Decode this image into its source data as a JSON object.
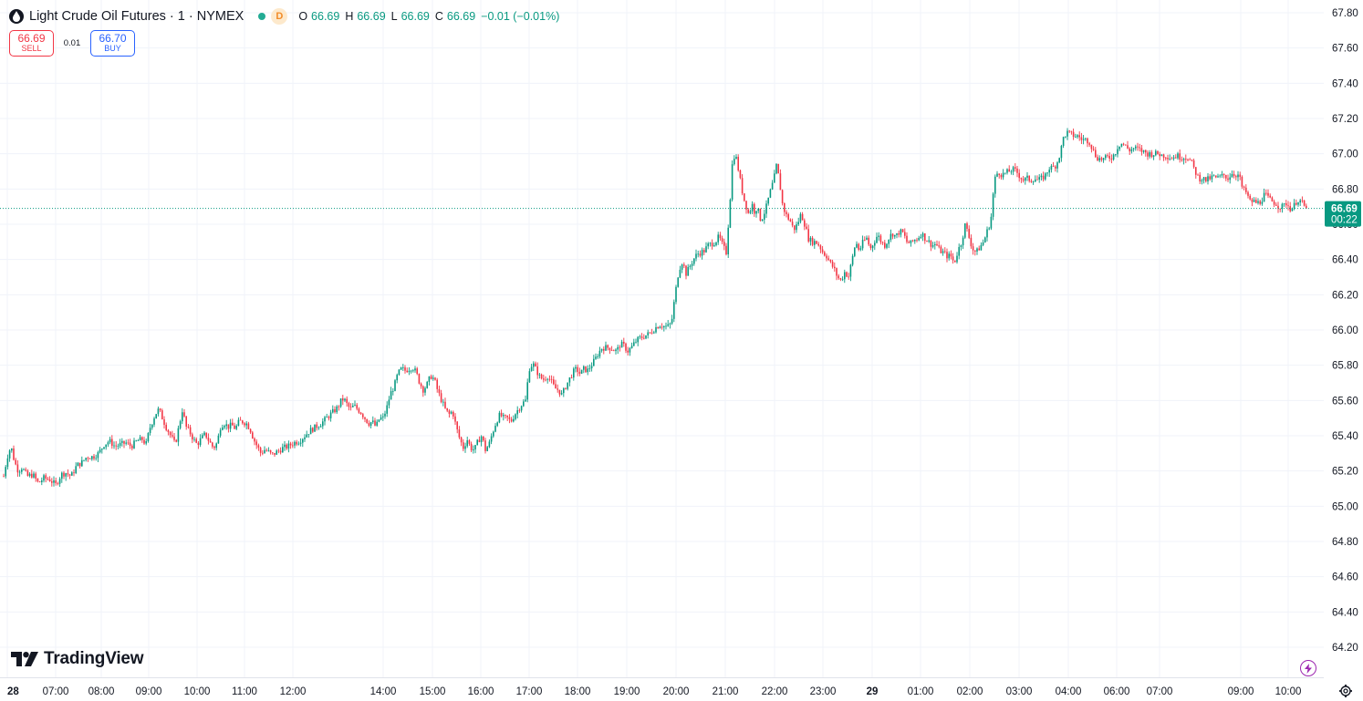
{
  "header": {
    "title": "Light Crude Oil Futures · 1 · NYMEX",
    "interval_badge": "D",
    "ohlc": [
      {
        "key": "O",
        "value": "66.69"
      },
      {
        "key": "H",
        "value": "66.69"
      },
      {
        "key": "L",
        "value": "66.69"
      },
      {
        "key": "C",
        "value": "66.69"
      }
    ],
    "change": "−0.01 (−0.01%)"
  },
  "trade": {
    "sell_price": "66.69",
    "sell_label": "SELL",
    "spread": "0.01",
    "buy_price": "66.70",
    "buy_label": "BUY"
  },
  "price_marker": {
    "price": "66.69",
    "countdown": "00:22"
  },
  "brand": {
    "name": "TradingView"
  },
  "colors": {
    "up": "#089981",
    "down": "#f23645",
    "grid": "#f0f3fa",
    "axis_text": "#131722"
  },
  "icons": [
    "oil-drop-icon",
    "status-dot-icon",
    "tradingview-logo-icon",
    "lightning-icon",
    "gear-icon"
  ],
  "chart_data": {
    "type": "candlestick",
    "title": "Light Crude Oil Futures · 1 · NYMEX",
    "y_axis": {
      "position": "right",
      "min": 64.1,
      "max": 67.9,
      "ticks": [
        "67.80",
        "67.60",
        "67.40",
        "67.20",
        "67.00",
        "66.80",
        "66.60",
        "66.40",
        "66.20",
        "66.00",
        "65.80",
        "65.60",
        "65.40",
        "65.20",
        "65.00",
        "64.80",
        "64.60",
        "64.40",
        "64.20"
      ]
    },
    "x_axis": {
      "ticks": [
        {
          "label": "28",
          "bold": true
        },
        {
          "label": "07:00"
        },
        {
          "label": "08:00"
        },
        {
          "label": "09:00"
        },
        {
          "label": "10:00"
        },
        {
          "label": "11:00"
        },
        {
          "label": "12:00"
        },
        {
          "label": "14:00"
        },
        {
          "label": "15:00"
        },
        {
          "label": "16:00"
        },
        {
          "label": "17:00"
        },
        {
          "label": "18:00"
        },
        {
          "label": "19:00"
        },
        {
          "label": "20:00"
        },
        {
          "label": "21:00"
        },
        {
          "label": "22:00"
        },
        {
          "label": "23:00"
        },
        {
          "label": "29",
          "bold": true
        },
        {
          "label": "01:00"
        },
        {
          "label": "02:00"
        },
        {
          "label": "03:00"
        },
        {
          "label": "04:00"
        },
        {
          "label": "06:00"
        },
        {
          "label": "07:00"
        },
        {
          "label": "09:00"
        },
        {
          "label": "10:00"
        }
      ]
    },
    "last_price": 66.69,
    "path": [
      [
        0,
        65.05
      ],
      [
        5,
        65.2
      ],
      [
        8,
        65.28
      ],
      [
        12,
        65.34
      ],
      [
        16,
        65.25
      ],
      [
        20,
        65.2
      ],
      [
        24,
        65.22
      ],
      [
        30,
        65.17
      ],
      [
        36,
        65.18
      ],
      [
        42,
        65.13
      ],
      [
        48,
        65.16
      ],
      [
        55,
        65.15
      ],
      [
        61,
        65.12
      ],
      [
        67,
        65.18
      ],
      [
        72,
        65.19
      ],
      [
        78,
        65.17
      ],
      [
        84,
        65.23
      ],
      [
        90,
        65.25
      ],
      [
        95,
        65.28
      ],
      [
        102,
        65.28
      ],
      [
        108,
        65.3
      ],
      [
        114,
        65.35
      ],
      [
        120,
        65.37
      ],
      [
        126,
        65.34
      ],
      [
        132,
        65.35
      ],
      [
        138,
        65.36
      ],
      [
        144,
        65.34
      ],
      [
        150,
        65.37
      ],
      [
        156,
        65.38
      ],
      [
        160,
        65.35
      ],
      [
        164,
        65.44
      ],
      [
        167,
        65.48
      ],
      [
        170,
        65.52
      ],
      [
        174,
        65.55
      ],
      [
        178,
        65.5
      ],
      [
        182,
        65.45
      ],
      [
        187,
        65.4
      ],
      [
        192,
        65.35
      ],
      [
        196,
        65.45
      ],
      [
        200,
        65.55
      ],
      [
        204,
        65.45
      ],
      [
        208,
        65.42
      ],
      [
        212,
        65.38
      ],
      [
        216,
        65.35
      ],
      [
        220,
        65.38
      ],
      [
        225,
        65.41
      ],
      [
        229,
        65.37
      ],
      [
        234,
        65.33
      ],
      [
        238,
        65.36
      ],
      [
        242,
        65.46
      ],
      [
        246,
        65.47
      ],
      [
        250,
        65.45
      ],
      [
        254,
        65.46
      ],
      [
        258,
        65.44
      ],
      [
        262,
        65.48
      ],
      [
        266,
        65.48
      ],
      [
        270,
        65.47
      ],
      [
        274,
        65.44
      ],
      [
        278,
        65.38
      ],
      [
        282,
        65.34
      ],
      [
        286,
        65.3
      ],
      [
        290,
        65.32
      ],
      [
        294,
        65.31
      ],
      [
        298,
        65.29
      ],
      [
        304,
        65.31
      ],
      [
        310,
        65.33
      ],
      [
        316,
        65.34
      ],
      [
        322,
        65.36
      ],
      [
        328,
        65.37
      ],
      [
        334,
        65.4
      ],
      [
        340,
        65.43
      ],
      [
        346,
        65.45
      ],
      [
        352,
        65.47
      ],
      [
        358,
        65.5
      ],
      [
        364,
        65.53
      ],
      [
        370,
        65.56
      ],
      [
        374,
        65.6
      ],
      [
        377,
        65.61
      ],
      [
        380,
        65.58
      ],
      [
        384,
        65.55
      ],
      [
        388,
        65.57
      ],
      [
        392,
        65.55
      ],
      [
        396,
        65.53
      ],
      [
        400,
        65.5
      ],
      [
        404,
        65.47
      ],
      [
        408,
        65.48
      ],
      [
        412,
        65.45
      ],
      [
        416,
        65.5
      ],
      [
        420,
        65.5
      ],
      [
        424,
        65.56
      ],
      [
        428,
        65.64
      ],
      [
        432,
        65.68
      ],
      [
        436,
        65.75
      ],
      [
        440,
        65.78
      ],
      [
        444,
        65.77
      ],
      [
        448,
        65.78
      ],
      [
        452,
        65.79
      ],
      [
        456,
        65.76
      ],
      [
        460,
        65.7
      ],
      [
        464,
        65.66
      ],
      [
        468,
        65.69
      ],
      [
        472,
        65.74
      ],
      [
        476,
        65.72
      ],
      [
        480,
        65.65
      ],
      [
        484,
        65.6
      ],
      [
        488,
        65.55
      ],
      [
        492,
        65.52
      ],
      [
        496,
        65.54
      ],
      [
        500,
        65.45
      ],
      [
        504,
        65.38
      ],
      [
        508,
        65.33
      ],
      [
        512,
        65.38
      ],
      [
        516,
        65.33
      ],
      [
        520,
        65.32
      ],
      [
        524,
        65.37
      ],
      [
        528,
        65.4
      ],
      [
        532,
        65.32
      ],
      [
        536,
        65.35
      ],
      [
        540,
        65.42
      ],
      [
        544,
        65.48
      ],
      [
        548,
        65.52
      ],
      [
        552,
        65.5
      ],
      [
        556,
        65.5
      ],
      [
        560,
        65.48
      ],
      [
        564,
        65.52
      ],
      [
        568,
        65.55
      ],
      [
        572,
        65.58
      ],
      [
        576,
        65.6
      ],
      [
        580,
        65.78
      ],
      [
        584,
        65.81
      ],
      [
        588,
        65.77
      ],
      [
        592,
        65.73
      ],
      [
        596,
        65.72
      ],
      [
        600,
        65.74
      ],
      [
        604,
        65.71
      ],
      [
        608,
        65.67
      ],
      [
        612,
        65.66
      ],
      [
        616,
        65.63
      ],
      [
        620,
        65.68
      ],
      [
        624,
        65.72
      ],
      [
        628,
        65.76
      ],
      [
        632,
        65.78
      ],
      [
        636,
        65.75
      ],
      [
        640,
        65.78
      ],
      [
        644,
        65.77
      ],
      [
        648,
        65.8
      ],
      [
        652,
        65.83
      ],
      [
        656,
        65.87
      ],
      [
        660,
        65.9
      ],
      [
        664,
        65.9
      ],
      [
        668,
        65.9
      ],
      [
        672,
        65.89
      ],
      [
        676,
        65.88
      ],
      [
        680,
        65.92
      ],
      [
        684,
        65.91
      ],
      [
        688,
        65.88
      ],
      [
        692,
        65.9
      ],
      [
        696,
        65.93
      ],
      [
        700,
        65.95
      ],
      [
        704,
        65.96
      ],
      [
        708,
        65.97
      ],
      [
        712,
        65.98
      ],
      [
        716,
        66.0
      ],
      [
        720,
        66.02
      ],
      [
        724,
        66.03
      ],
      [
        728,
        66.02
      ],
      [
        732,
        66.02
      ],
      [
        736,
        66.04
      ],
      [
        740,
        66.2
      ],
      [
        744,
        66.34
      ],
      [
        748,
        66.39
      ],
      [
        752,
        66.32
      ],
      [
        756,
        66.36
      ],
      [
        760,
        66.4
      ],
      [
        764,
        66.43
      ],
      [
        768,
        66.44
      ],
      [
        772,
        66.45
      ],
      [
        776,
        66.48
      ],
      [
        780,
        66.49
      ],
      [
        784,
        66.5
      ],
      [
        788,
        66.53
      ],
      [
        792,
        66.48
      ],
      [
        796,
        66.44
      ],
      [
        800,
        66.72
      ],
      [
        803,
        66.97
      ],
      [
        806,
        67.0
      ],
      [
        809,
        66.92
      ],
      [
        812,
        66.83
      ],
      [
        815,
        66.75
      ],
      [
        818,
        66.7
      ],
      [
        821,
        66.65
      ],
      [
        824,
        66.72
      ],
      [
        827,
        66.67
      ],
      [
        830,
        66.7
      ],
      [
        833,
        66.63
      ],
      [
        836,
        66.64
      ],
      [
        840,
        66.7
      ],
      [
        844,
        66.78
      ],
      [
        848,
        66.85
      ],
      [
        851,
        66.93
      ],
      [
        854,
        66.86
      ],
      [
        858,
        66.7
      ],
      [
        862,
        66.65
      ],
      [
        866,
        66.62
      ],
      [
        870,
        66.57
      ],
      [
        874,
        66.6
      ],
      [
        878,
        66.66
      ],
      [
        882,
        66.6
      ],
      [
        886,
        66.52
      ],
      [
        890,
        66.5
      ],
      [
        894,
        66.5
      ],
      [
        898,
        66.48
      ],
      [
        902,
        66.44
      ],
      [
        906,
        66.42
      ],
      [
        910,
        66.38
      ],
      [
        914,
        66.35
      ],
      [
        918,
        66.3
      ],
      [
        922,
        66.28
      ],
      [
        926,
        66.33
      ],
      [
        930,
        66.3
      ],
      [
        934,
        66.4
      ],
      [
        938,
        66.5
      ],
      [
        942,
        66.45
      ],
      [
        946,
        66.5
      ],
      [
        950,
        66.52
      ],
      [
        954,
        66.46
      ],
      [
        958,
        66.5
      ],
      [
        962,
        66.54
      ],
      [
        966,
        66.5
      ],
      [
        970,
        66.48
      ],
      [
        974,
        66.52
      ],
      [
        978,
        66.55
      ],
      [
        982,
        66.53
      ],
      [
        986,
        66.56
      ],
      [
        990,
        66.55
      ],
      [
        994,
        66.5
      ],
      [
        998,
        66.49
      ],
      [
        1002,
        66.51
      ],
      [
        1006,
        66.52
      ],
      [
        1010,
        66.55
      ],
      [
        1014,
        66.52
      ],
      [
        1018,
        66.5
      ],
      [
        1022,
        66.48
      ],
      [
        1026,
        66.49
      ],
      [
        1030,
        66.45
      ],
      [
        1034,
        66.44
      ],
      [
        1038,
        66.42
      ],
      [
        1042,
        66.42
      ],
      [
        1046,
        66.38
      ],
      [
        1050,
        66.45
      ],
      [
        1054,
        66.5
      ],
      [
        1058,
        66.6
      ],
      [
        1062,
        66.53
      ],
      [
        1066,
        66.46
      ],
      [
        1070,
        66.44
      ],
      [
        1074,
        66.47
      ],
      [
        1078,
        66.5
      ],
      [
        1082,
        66.56
      ],
      [
        1086,
        66.62
      ],
      [
        1090,
        66.85
      ],
      [
        1094,
        66.9
      ],
      [
        1098,
        66.88
      ],
      [
        1102,
        66.89
      ],
      [
        1106,
        66.9
      ],
      [
        1110,
        66.91
      ],
      [
        1114,
        66.9
      ],
      [
        1118,
        66.87
      ],
      [
        1122,
        66.85
      ],
      [
        1126,
        66.86
      ],
      [
        1130,
        66.85
      ],
      [
        1134,
        66.86
      ],
      [
        1138,
        66.85
      ],
      [
        1142,
        66.86
      ],
      [
        1146,
        66.88
      ],
      [
        1150,
        66.92
      ],
      [
        1154,
        66.92
      ],
      [
        1158,
        66.94
      ],
      [
        1162,
        67.0
      ],
      [
        1166,
        67.1
      ],
      [
        1170,
        67.12
      ],
      [
        1174,
        67.11
      ],
      [
        1178,
        67.1
      ],
      [
        1182,
        67.1
      ],
      [
        1186,
        67.08
      ],
      [
        1190,
        67.08
      ],
      [
        1194,
        67.07
      ],
      [
        1198,
        67.02
      ],
      [
        1202,
        66.98
      ],
      [
        1206,
        66.97
      ],
      [
        1210,
        66.97
      ],
      [
        1214,
        66.98
      ],
      [
        1218,
        66.98
      ],
      [
        1222,
        67.0
      ],
      [
        1226,
        67.05
      ],
      [
        1230,
        67.06
      ],
      [
        1234,
        67.04
      ],
      [
        1238,
        67.02
      ],
      [
        1242,
        67.03
      ],
      [
        1246,
        67.03
      ],
      [
        1250,
        67.02
      ],
      [
        1254,
        67.01
      ],
      [
        1258,
        67.0
      ],
      [
        1262,
        67.0
      ],
      [
        1266,
        67.0
      ],
      [
        1270,
        67.0
      ],
      [
        1274,
        66.99
      ],
      [
        1278,
        66.99
      ],
      [
        1282,
        66.98
      ],
      [
        1286,
        66.98
      ],
      [
        1290,
        66.99
      ],
      [
        1294,
        66.98
      ],
      [
        1298,
        66.98
      ],
      [
        1302,
        66.98
      ],
      [
        1306,
        66.95
      ],
      [
        1310,
        66.9
      ],
      [
        1314,
        66.86
      ],
      [
        1318,
        66.86
      ],
      [
        1322,
        66.85
      ],
      [
        1326,
        66.86
      ],
      [
        1330,
        66.87
      ],
      [
        1334,
        66.86
      ],
      [
        1338,
        66.87
      ],
      [
        1342,
        66.88
      ],
      [
        1346,
        66.86
      ],
      [
        1350,
        66.89
      ],
      [
        1354,
        66.88
      ],
      [
        1358,
        66.88
      ],
      [
        1362,
        66.8
      ],
      [
        1366,
        66.78
      ],
      [
        1370,
        66.73
      ],
      [
        1374,
        66.73
      ],
      [
        1378,
        66.72
      ],
      [
        1382,
        66.73
      ],
      [
        1386,
        66.77
      ],
      [
        1390,
        66.75
      ],
      [
        1394,
        66.73
      ],
      [
        1398,
        66.72
      ],
      [
        1402,
        66.7
      ],
      [
        1406,
        66.7
      ],
      [
        1410,
        66.72
      ],
      [
        1414,
        66.69
      ],
      [
        1418,
        66.7
      ],
      [
        1422,
        66.74
      ],
      [
        1426,
        66.73
      ],
      [
        1430,
        66.7
      ],
      [
        1434,
        66.69
      ]
    ]
  }
}
